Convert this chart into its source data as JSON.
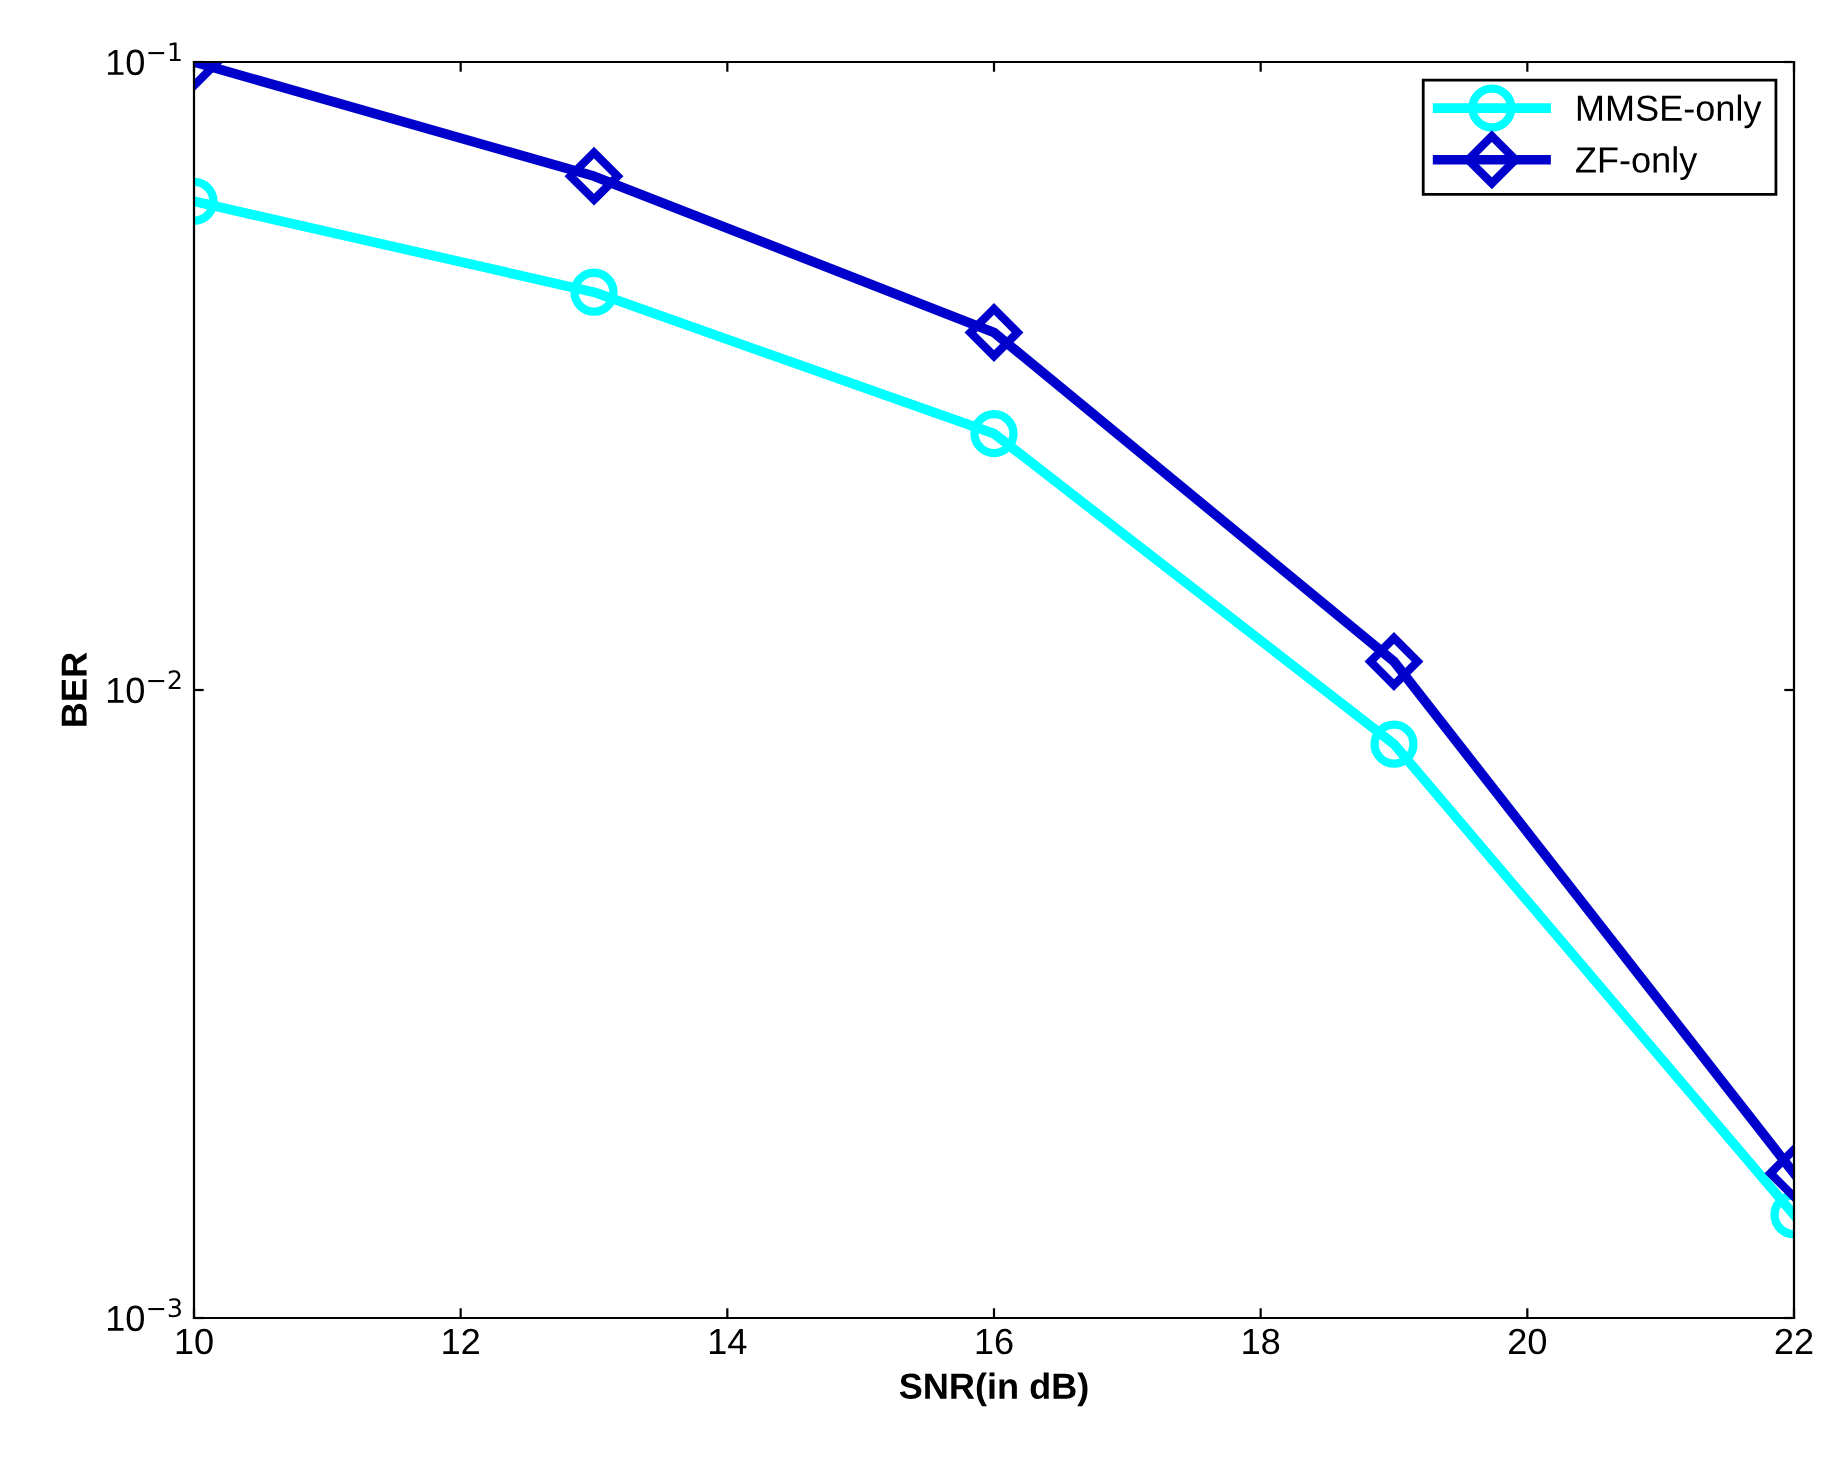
{
  "chart_data": {
    "type": "line",
    "xlabel": "SNR(in dB)",
    "ylabel": "BER",
    "x": [
      10,
      13,
      16,
      19,
      22
    ],
    "series": [
      {
        "name": "MMSE-only",
        "color": "#00ffff",
        "marker": "circle",
        "values": [
          0.06,
          0.043,
          0.0256,
          0.0082,
          0.00146
        ]
      },
      {
        "name": "ZF-only",
        "color": "#0000cc",
        "marker": "diamond",
        "values": [
          0.1,
          0.0658,
          0.0371,
          0.0111,
          0.0017
        ]
      }
    ],
    "log": "y",
    "xlim": [
      10,
      22
    ],
    "ylim": [
      0.001,
      0.1
    ],
    "xticks": [
      10,
      12,
      14,
      16,
      18,
      20,
      22
    ],
    "yticks": [
      {
        "value": 0.001,
        "label": "10$^{−3}$"
      },
      {
        "value": 0.01,
        "label": "10$^{−2}$"
      },
      {
        "value": 0.1,
        "label": "10$^{−1}$"
      }
    ],
    "grid": false,
    "legend": "top right",
    "line_style": "solid"
  }
}
